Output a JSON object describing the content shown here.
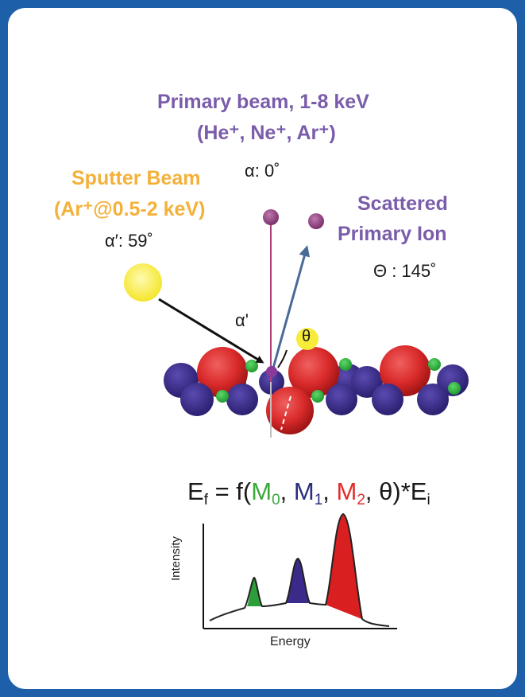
{
  "primary_beam": {
    "line1": "Primary beam, 1-8 keV",
    "line2": "(He⁺, Ne⁺, Ar⁺)",
    "angle": "α: 0˚"
  },
  "sputter_beam": {
    "line1": "Sputter Beam",
    "line2": "(Ar⁺@0.5-2 keV)",
    "angle": "α′: 59˚"
  },
  "scattered_ion": {
    "line1": "Scattered",
    "line2": "Primary Ion",
    "angle": "Θ : 145˚"
  },
  "diagram_labels": {
    "alpha_prime": "α'",
    "theta": "θ"
  },
  "equation": {
    "lhs": "E",
    "lhs_sub": "f",
    "eq_func": " = f(",
    "m0": "M",
    "m0_sub": "0",
    "m1": "M",
    "m1_sub": "1",
    "m2": "M",
    "m2_sub": "2",
    "tail": ", θ)*E",
    "tail_sub": "i",
    "sep": ", "
  },
  "spectrum": {
    "ylabel": "Intensity",
    "xlabel": "Energy",
    "peaks": [
      {
        "element": "M0",
        "color": "#2e9e3a"
      },
      {
        "element": "M1",
        "color": "#3b2a8a"
      },
      {
        "element": "M2",
        "color": "#d91f1f"
      }
    ]
  },
  "colors": {
    "frame": "#1d5fa8",
    "purple_text": "#7a5cab",
    "orange_text": "#f4b13a",
    "red_atom": "#d92a2a",
    "blue_atom": "#3a2a8c",
    "green_atom": "#2fb040",
    "sputter_ball": "#f7ec3a"
  }
}
